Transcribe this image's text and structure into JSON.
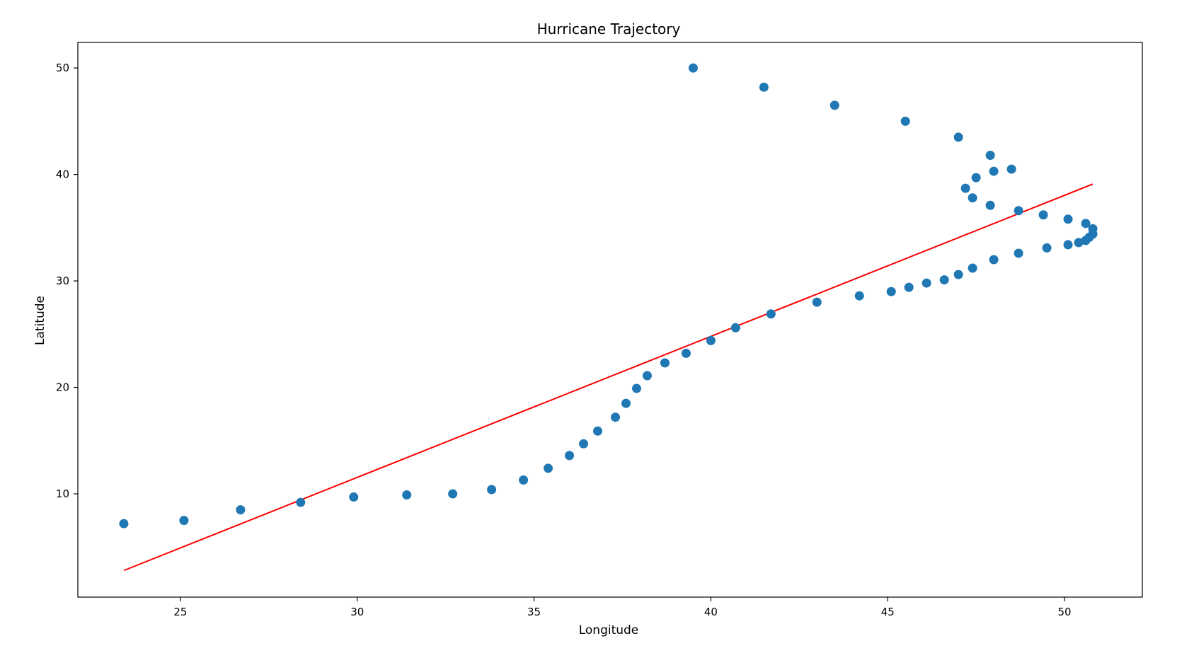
{
  "chart_data": {
    "type": "scatter",
    "title": "Hurricane Trajectory",
    "xlabel": "Longitude",
    "ylabel": "Latitude",
    "xlim": [
      22.1,
      52.2
    ],
    "ylim": [
      0.3,
      52.4
    ],
    "xticks": [
      25,
      30,
      35,
      40,
      45,
      50
    ],
    "yticks": [
      10,
      20,
      30,
      40,
      50
    ],
    "grid": false,
    "points_color": "#1f77b4",
    "line_color": "#ff0000",
    "points": [
      [
        23.4,
        7.2
      ],
      [
        25.1,
        7.5
      ],
      [
        26.7,
        8.5
      ],
      [
        28.4,
        9.2
      ],
      [
        29.9,
        9.7
      ],
      [
        31.4,
        9.9
      ],
      [
        32.7,
        10.0
      ],
      [
        33.8,
        10.4
      ],
      [
        34.7,
        11.3
      ],
      [
        35.4,
        12.4
      ],
      [
        36.0,
        13.6
      ],
      [
        36.4,
        14.7
      ],
      [
        36.8,
        15.9
      ],
      [
        37.3,
        17.2
      ],
      [
        37.6,
        18.5
      ],
      [
        37.9,
        19.9
      ],
      [
        38.2,
        21.1
      ],
      [
        38.7,
        22.3
      ],
      [
        39.3,
        23.2
      ],
      [
        40.0,
        24.4
      ],
      [
        40.7,
        25.6
      ],
      [
        41.7,
        26.9
      ],
      [
        43.0,
        28.0
      ],
      [
        44.2,
        28.6
      ],
      [
        45.1,
        29.0
      ],
      [
        45.6,
        29.4
      ],
      [
        46.1,
        29.8
      ],
      [
        46.6,
        30.1
      ],
      [
        47.0,
        30.6
      ],
      [
        47.4,
        31.2
      ],
      [
        48.0,
        32.0
      ],
      [
        48.7,
        32.6
      ],
      [
        49.5,
        33.1
      ],
      [
        50.1,
        33.4
      ],
      [
        50.4,
        33.6
      ],
      [
        50.6,
        33.8
      ],
      [
        50.7,
        34.1
      ],
      [
        50.8,
        34.4
      ],
      [
        50.8,
        34.9
      ],
      [
        50.6,
        35.4
      ],
      [
        50.1,
        35.8
      ],
      [
        49.4,
        36.2
      ],
      [
        48.7,
        36.6
      ],
      [
        47.9,
        37.1
      ],
      [
        47.4,
        37.8
      ],
      [
        47.2,
        38.7
      ],
      [
        47.5,
        39.7
      ],
      [
        48.0,
        40.3
      ],
      [
        48.5,
        40.5
      ],
      [
        47.9,
        41.8
      ],
      [
        47.0,
        43.5
      ],
      [
        45.5,
        45.0
      ],
      [
        43.5,
        46.5
      ],
      [
        41.5,
        48.2
      ],
      [
        39.5,
        50.0
      ]
    ],
    "regression_line": [
      [
        23.4,
        2.8
      ],
      [
        50.8,
        39.1
      ]
    ]
  }
}
